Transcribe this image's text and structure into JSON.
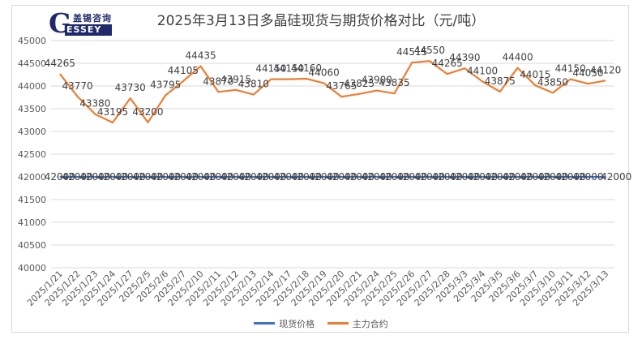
{
  "logo": {
    "initial": "G",
    "cn": "盖锡咨询",
    "en": "ESSEY"
  },
  "chart_data": {
    "type": "line",
    "title": "2025年3月13日多晶硅现货与期货价格对比（元/吨）",
    "xlabel": "",
    "ylabel": "",
    "ylim": [
      40000,
      45000
    ],
    "yticks": [
      40000,
      40500,
      41000,
      41500,
      42000,
      42500,
      43000,
      43500,
      44000,
      44500,
      45000
    ],
    "grid": true,
    "legend": "bottom",
    "categories": [
      "2025/1/21",
      "2025/1/22",
      "2025/1/23",
      "2025/1/24",
      "2025/1/27",
      "2025/2/5",
      "2025/2/6",
      "2025/2/7",
      "2025/2/10",
      "2025/2/11",
      "2025/2/12",
      "2025/2/13",
      "2025/2/14",
      "2025/2/17",
      "2025/2/18",
      "2025/2/19",
      "2025/2/20",
      "2025/2/21",
      "2025/2/24",
      "2025/2/25",
      "2025/2/26",
      "2025/2/27",
      "2025/2/28",
      "2025/3/3",
      "2025/3/4",
      "2025/3/5",
      "2025/3/6",
      "2025/3/7",
      "2025/3/10",
      "2025/3/11",
      "2025/3/12",
      "2025/3/13"
    ],
    "series": [
      {
        "name": "现货价格",
        "color": "#4472c4",
        "values": [
          42000,
          42000,
          42000,
          42000,
          42000,
          42000,
          42000,
          42000,
          42000,
          42000,
          42000,
          42000,
          42000,
          42000,
          42000,
          42000,
          42000,
          42000,
          42000,
          42000,
          42000,
          42000,
          42000,
          42000,
          42000,
          42000,
          42000,
          42000,
          42000,
          42000,
          42000,
          42000
        ]
      },
      {
        "name": "主力合约",
        "color": "#ed7d31",
        "values": [
          44265,
          43770,
          43380,
          43195,
          43730,
          43200,
          43795,
          44105,
          44435,
          43870,
          43915,
          43810,
          44150,
          44150,
          44160,
          44060,
          43765,
          43825,
          43900,
          43835,
          44515,
          44550,
          44265,
          44390,
          44100,
          43875,
          44400,
          44015,
          43850,
          44150,
          44050,
          44120
        ]
      }
    ]
  }
}
